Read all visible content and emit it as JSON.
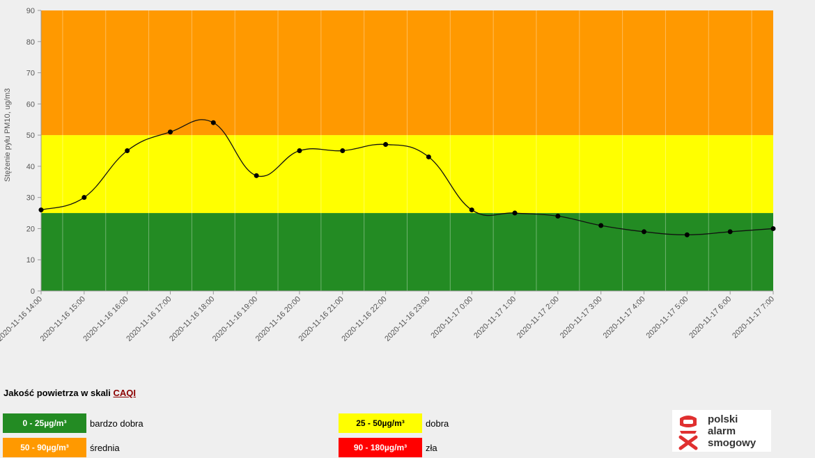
{
  "chart_data": {
    "type": "line",
    "ylabel": "Stężenie pyłu PM10, ug/m3",
    "xlabel": "",
    "ylim": [
      0,
      90
    ],
    "yticks": [
      0,
      10,
      20,
      30,
      40,
      50,
      60,
      70,
      80,
      90
    ],
    "categories": [
      "2020-11-16 14:00",
      "2020-11-16 15:00",
      "2020-11-16 16:00",
      "2020-11-16 17:00",
      "2020-11-16 18:00",
      "2020-11-16 19:00",
      "2020-11-16 20:00",
      "2020-11-16 21:00",
      "2020-11-16 22:00",
      "2020-11-16 23:00",
      "2020-11-17 0:00",
      "2020-11-17 1:00",
      "2020-11-17 2:00",
      "2020-11-17 3:00",
      "2020-11-17 4:00",
      "2020-11-17 5:00",
      "2020-11-17 6:00",
      "2020-11-17 7:00"
    ],
    "series": [
      {
        "values": [
          26,
          30,
          45,
          51,
          54,
          37,
          45,
          45,
          47,
          43,
          26,
          25,
          24,
          21,
          19,
          18,
          19,
          20
        ]
      }
    ],
    "bands": [
      {
        "from": 0,
        "to": 25,
        "color": "#238b23"
      },
      {
        "from": 25,
        "to": 50,
        "color": "#ffff00"
      },
      {
        "from": 50,
        "to": 90,
        "color": "#ff9900"
      }
    ],
    "grid": true
  },
  "legend": {
    "title": "Jakość powietrza w skali",
    "link_text": "CAQI",
    "items": [
      {
        "range": "0 - 25µg/m³",
        "label": "bardzo dobra",
        "color": "#238b23"
      },
      {
        "range": "25 - 50µg/m³",
        "label": "dobra",
        "color": "#ffff00"
      },
      {
        "range": "50 - 90µg/m³",
        "label": "średnia",
        "color": "#ff9900"
      },
      {
        "range": "90 - 180µg/m³",
        "label": "zła",
        "color": "#ff0000"
      }
    ]
  },
  "logo": {
    "line1": "polski",
    "line2": "alarm",
    "line3": "smogowy",
    "icon": "smog-mask-icon"
  }
}
